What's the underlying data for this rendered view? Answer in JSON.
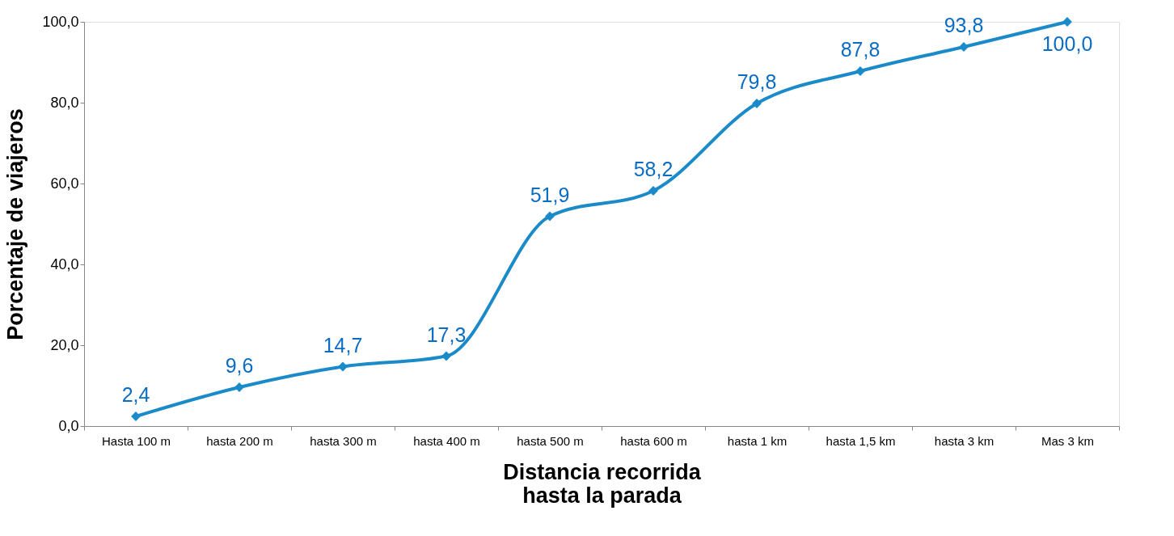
{
  "chart_data": {
    "type": "line",
    "xlabel": "Distancia recorrida\nhasta la parada",
    "ylabel": "Porcentaje de viajeros",
    "categories": [
      "Hasta 100 m",
      "hasta 200 m",
      "hasta 300 m",
      "hasta 400 m",
      "hasta 500 m",
      "hasta 600 m",
      "hasta 1 km",
      "hasta 1,5 km",
      "hasta 3 km",
      "Mas 3 km"
    ],
    "series": [
      {
        "color": "#1a8ac9",
        "values": [
          2.4,
          9.6,
          14.7,
          17.3,
          51.9,
          58.2,
          79.8,
          87.8,
          93.8,
          100.0
        ],
        "value_labels": [
          "2,4",
          "9,6",
          "14,7",
          "17,3",
          "51,9",
          "58,2",
          "79,8",
          "87,8",
          "93,8",
          "100,0"
        ]
      }
    ],
    "ylim": [
      0,
      100
    ],
    "yticks": [
      {
        "value": 0,
        "label": "0,0"
      },
      {
        "value": 20,
        "label": "20,0"
      },
      {
        "value": 40,
        "label": "40,0"
      },
      {
        "value": 60,
        "label": "60,0"
      },
      {
        "value": 80,
        "label": "80,0"
      },
      {
        "value": 100,
        "label": "100,0"
      }
    ],
    "marker": "diamond",
    "line_style": "solid",
    "grid": false
  }
}
